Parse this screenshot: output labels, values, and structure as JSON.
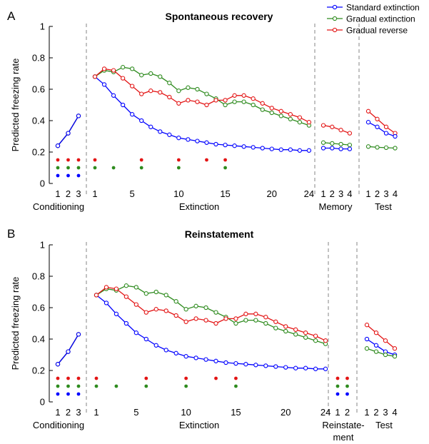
{
  "colors": {
    "standard": "#0000ff",
    "gradual": "#2e8b1e",
    "reverse": "#e31414",
    "axis": "#000000",
    "divider": "#999999"
  },
  "legend": {
    "entries": [
      {
        "key": "standard",
        "label": "Standard extinction"
      },
      {
        "key": "gradual",
        "label": "Gradual extinction"
      },
      {
        "key": "reverse",
        "label": "Gradual reverse"
      }
    ]
  },
  "chart_data": [
    {
      "type": "line",
      "panel_letter": "A",
      "title": "Spontaneous recovery",
      "ylabel": "Predicted freezing rate",
      "ylim": [
        0,
        1
      ],
      "yticks": [
        "0",
        "0.2",
        "0.4",
        "0.6",
        "0.8",
        "1"
      ],
      "legend_position": "top-right",
      "phases": [
        {
          "name": "Conditioning",
          "ticks": [
            "1",
            "2",
            "3"
          ],
          "series": [
            {
              "key": "reverse",
              "values": [
                0.24,
                0.32,
                0.43
              ]
            },
            {
              "key": "gradual",
              "values": [
                0.24,
                0.32,
                0.43
              ]
            },
            {
              "key": "standard",
              "values": [
                0.24,
                0.32,
                0.43
              ]
            }
          ],
          "dots": [
            {
              "key": "reverse",
              "level": 0.15,
              "trials": [
                1,
                2,
                3
              ]
            },
            {
              "key": "gradual",
              "level": 0.1,
              "trials": [
                1,
                2,
                3
              ]
            },
            {
              "key": "standard",
              "level": 0.05,
              "trials": [
                1,
                2,
                3
              ]
            }
          ]
        },
        {
          "name": "Extinction",
          "ticks": [
            "1",
            "5",
            "10",
            "15",
            "20",
            "24"
          ],
          "series": [
            {
              "key": "standard",
              "values": [
                0.68,
                0.63,
                0.56,
                0.5,
                0.44,
                0.4,
                0.36,
                0.33,
                0.31,
                0.29,
                0.28,
                0.27,
                0.26,
                0.25,
                0.245,
                0.24,
                0.235,
                0.23,
                0.225,
                0.22,
                0.215,
                0.215,
                0.21,
                0.21
              ]
            },
            {
              "key": "gradual",
              "values": [
                0.68,
                0.72,
                0.71,
                0.74,
                0.73,
                0.69,
                0.7,
                0.68,
                0.64,
                0.59,
                0.61,
                0.6,
                0.57,
                0.54,
                0.5,
                0.52,
                0.52,
                0.5,
                0.47,
                0.45,
                0.43,
                0.41,
                0.39,
                0.37
              ]
            },
            {
              "key": "reverse",
              "values": [
                0.68,
                0.73,
                0.72,
                0.67,
                0.62,
                0.57,
                0.59,
                0.58,
                0.55,
                0.51,
                0.53,
                0.52,
                0.5,
                0.53,
                0.53,
                0.56,
                0.56,
                0.54,
                0.51,
                0.48,
                0.46,
                0.44,
                0.42,
                0.39
              ]
            }
          ],
          "dots": [
            {
              "key": "reverse",
              "level": 0.15,
              "trials": [
                1,
                6,
                10,
                13,
                15
              ]
            },
            {
              "key": "gradual",
              "level": 0.1,
              "trials": [
                1,
                3,
                6,
                10,
                15
              ]
            }
          ]
        },
        {
          "name": "Memory",
          "ticks": [
            "1",
            "2",
            "3",
            "4"
          ],
          "series": [
            {
              "key": "reverse",
              "values": [
                0.37,
                0.36,
                0.34,
                0.32
              ]
            },
            {
              "key": "gradual",
              "values": [
                0.26,
                0.255,
                0.25,
                0.245
              ]
            },
            {
              "key": "standard",
              "values": [
                0.225,
                0.225,
                0.22,
                0.22
              ]
            }
          ],
          "dots": []
        },
        {
          "name": "Test",
          "ticks": [
            "1",
            "2",
            "3",
            "4"
          ],
          "series": [
            {
              "key": "reverse",
              "values": [
                0.46,
                0.41,
                0.36,
                0.32
              ]
            },
            {
              "key": "standard",
              "values": [
                0.39,
                0.36,
                0.32,
                0.3
              ]
            },
            {
              "key": "gradual",
              "values": [
                0.235,
                0.23,
                0.228,
                0.225
              ]
            }
          ],
          "dots": []
        }
      ]
    },
    {
      "type": "line",
      "panel_letter": "B",
      "title": "Reinstatement",
      "ylabel": "Predicted freezing rate",
      "ylim": [
        0,
        1
      ],
      "yticks": [
        "0",
        "0.2",
        "0.4",
        "0.6",
        "0.8",
        "1"
      ],
      "phases": [
        {
          "name": "Conditioning",
          "ticks": [
            "1",
            "2",
            "3"
          ],
          "series": [
            {
              "key": "reverse",
              "values": [
                0.24,
                0.32,
                0.43
              ]
            },
            {
              "key": "gradual",
              "values": [
                0.24,
                0.32,
                0.43
              ]
            },
            {
              "key": "standard",
              "values": [
                0.24,
                0.32,
                0.43
              ]
            }
          ],
          "dots": [
            {
              "key": "reverse",
              "level": 0.15,
              "trials": [
                1,
                2,
                3
              ]
            },
            {
              "key": "gradual",
              "level": 0.1,
              "trials": [
                1,
                2,
                3
              ]
            },
            {
              "key": "standard",
              "level": 0.05,
              "trials": [
                1,
                2,
                3
              ]
            }
          ]
        },
        {
          "name": "Extinction",
          "ticks": [
            "1",
            "5",
            "10",
            "15",
            "20",
            "24"
          ],
          "series": [
            {
              "key": "standard",
              "values": [
                0.68,
                0.63,
                0.56,
                0.5,
                0.44,
                0.4,
                0.36,
                0.33,
                0.31,
                0.29,
                0.28,
                0.27,
                0.26,
                0.25,
                0.245,
                0.24,
                0.235,
                0.23,
                0.225,
                0.22,
                0.215,
                0.215,
                0.21,
                0.21
              ]
            },
            {
              "key": "gradual",
              "values": [
                0.68,
                0.72,
                0.71,
                0.74,
                0.73,
                0.69,
                0.7,
                0.68,
                0.64,
                0.59,
                0.61,
                0.6,
                0.57,
                0.54,
                0.5,
                0.52,
                0.52,
                0.5,
                0.47,
                0.45,
                0.43,
                0.41,
                0.39,
                0.37
              ]
            },
            {
              "key": "reverse",
              "values": [
                0.68,
                0.73,
                0.72,
                0.67,
                0.62,
                0.57,
                0.59,
                0.58,
                0.55,
                0.51,
                0.53,
                0.52,
                0.5,
                0.53,
                0.53,
                0.56,
                0.56,
                0.54,
                0.51,
                0.48,
                0.46,
                0.44,
                0.42,
                0.39
              ]
            }
          ],
          "dots": [
            {
              "key": "reverse",
              "level": 0.15,
              "trials": [
                1,
                6,
                10,
                13,
                15
              ]
            },
            {
              "key": "gradual",
              "level": 0.1,
              "trials": [
                1,
                3,
                6,
                10,
                15
              ]
            }
          ]
        },
        {
          "name": "Reinstate-\nment",
          "ticks": [
            "1",
            "2"
          ],
          "series": [],
          "dots": [
            {
              "key": "reverse",
              "level": 0.15,
              "trials": [
                1,
                2
              ]
            },
            {
              "key": "gradual",
              "level": 0.1,
              "trials": [
                1,
                2
              ]
            },
            {
              "key": "standard",
              "level": 0.05,
              "trials": [
                1,
                2
              ]
            }
          ]
        },
        {
          "name": "Test",
          "ticks": [
            "1",
            "2",
            "3",
            "4"
          ],
          "series": [
            {
              "key": "reverse",
              "values": [
                0.49,
                0.44,
                0.39,
                0.34
              ]
            },
            {
              "key": "standard",
              "values": [
                0.4,
                0.36,
                0.32,
                0.3
              ]
            },
            {
              "key": "gradual",
              "values": [
                0.34,
                0.32,
                0.3,
                0.29
              ]
            }
          ],
          "dots": []
        }
      ]
    }
  ]
}
